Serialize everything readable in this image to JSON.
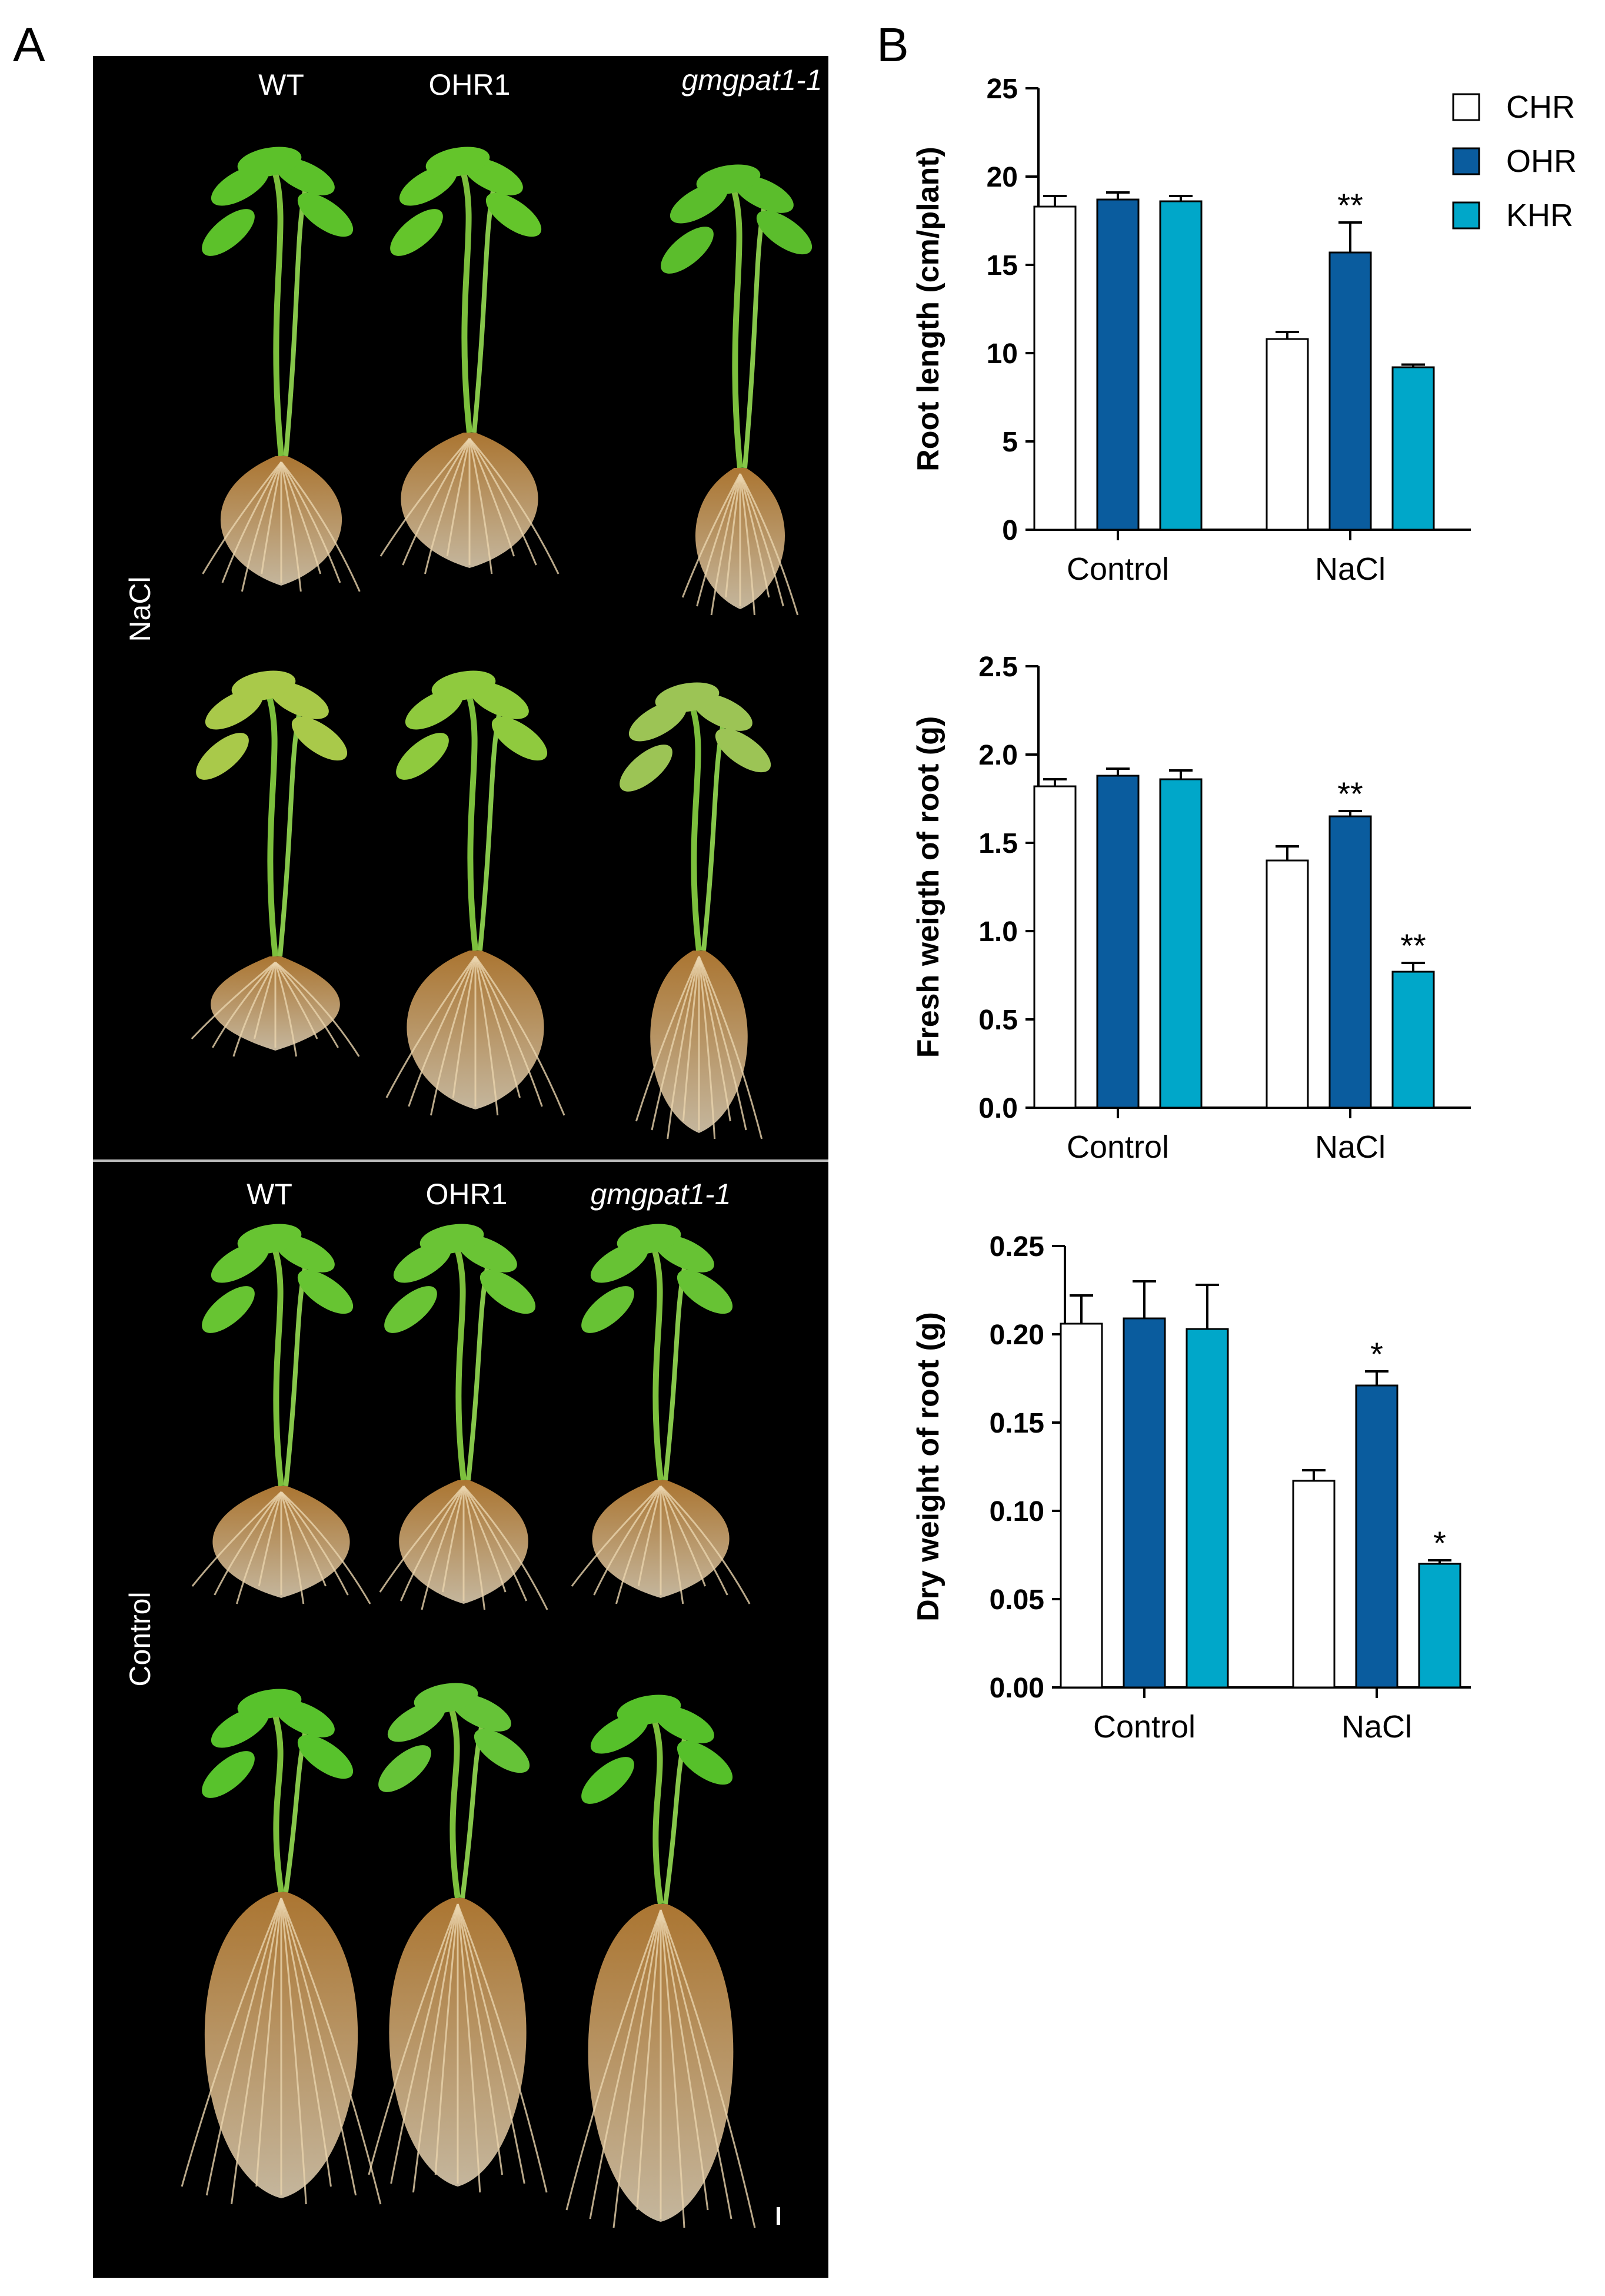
{
  "panels": {
    "a": "A",
    "b": "B"
  },
  "photo": {
    "top": {
      "condition": "NaCl",
      "genotypes": [
        "WT",
        "OHR1",
        "gmgpat1-1"
      ]
    },
    "bottom": {
      "condition": "Control",
      "genotypes": [
        "WT",
        "OHR1",
        "gmgpat1-1"
      ]
    }
  },
  "colors": {
    "CHR": "#ffffff",
    "OHR": "#0a5c9e",
    "KHR": "#00a7c9"
  },
  "chart_data": [
    {
      "type": "bar",
      "categories": [
        "Control",
        "NaCl"
      ],
      "series": [
        {
          "name": "CHR",
          "values": [
            18.3,
            10.8
          ],
          "errors": [
            0.6,
            0.4
          ],
          "sig": [
            "",
            ""
          ]
        },
        {
          "name": "OHR",
          "values": [
            18.7,
            15.7
          ],
          "errors": [
            0.4,
            1.7
          ],
          "sig": [
            "",
            "**"
          ]
        },
        {
          "name": "KHR",
          "values": [
            18.6,
            9.2
          ],
          "errors": [
            0.3,
            0.15
          ],
          "sig": [
            "",
            ""
          ]
        }
      ],
      "ylabel": "Root length  (cm/plant)",
      "ylim": [
        0,
        25
      ],
      "yticks": [
        "0",
        "5",
        "10",
        "15",
        "20",
        "25"
      ],
      "legend": [
        "CHR",
        "OHR",
        "KHR"
      ],
      "legend_position": "top-right"
    },
    {
      "type": "bar",
      "categories": [
        "Control",
        "NaCl"
      ],
      "series": [
        {
          "name": "CHR",
          "values": [
            1.82,
            1.4
          ],
          "errors": [
            0.04,
            0.08
          ],
          "sig": [
            "",
            ""
          ]
        },
        {
          "name": "OHR",
          "values": [
            1.88,
            1.65
          ],
          "errors": [
            0.04,
            0.03
          ],
          "sig": [
            "",
            "**"
          ]
        },
        {
          "name": "KHR",
          "values": [
            1.86,
            0.77
          ],
          "errors": [
            0.05,
            0.05
          ],
          "sig": [
            "",
            "**"
          ]
        }
      ],
      "ylabel": "Fresh weigth of root  (g)",
      "ylim": [
        0,
        2.5
      ],
      "yticks": [
        "0.0",
        "0.5",
        "1.0",
        "1.5",
        "2.0",
        "2.5"
      ]
    },
    {
      "type": "bar",
      "categories": [
        "Control",
        "NaCl"
      ],
      "series": [
        {
          "name": "CHR",
          "values": [
            0.206,
            0.117
          ],
          "errors": [
            0.016,
            0.006
          ],
          "sig": [
            "",
            ""
          ]
        },
        {
          "name": "OHR",
          "values": [
            0.209,
            0.171
          ],
          "errors": [
            0.021,
            0.008
          ],
          "sig": [
            "",
            "*"
          ]
        },
        {
          "name": "KHR",
          "values": [
            0.203,
            0.07
          ],
          "errors": [
            0.025,
            0.002
          ],
          "sig": [
            "",
            "*"
          ]
        }
      ],
      "ylabel": "Dry weight of root  (g)",
      "ylim": [
        0,
        0.25
      ],
      "yticks": [
        "0.00",
        "0.05",
        "0.10",
        "0.15",
        "0.20",
        "0.25"
      ]
    }
  ]
}
